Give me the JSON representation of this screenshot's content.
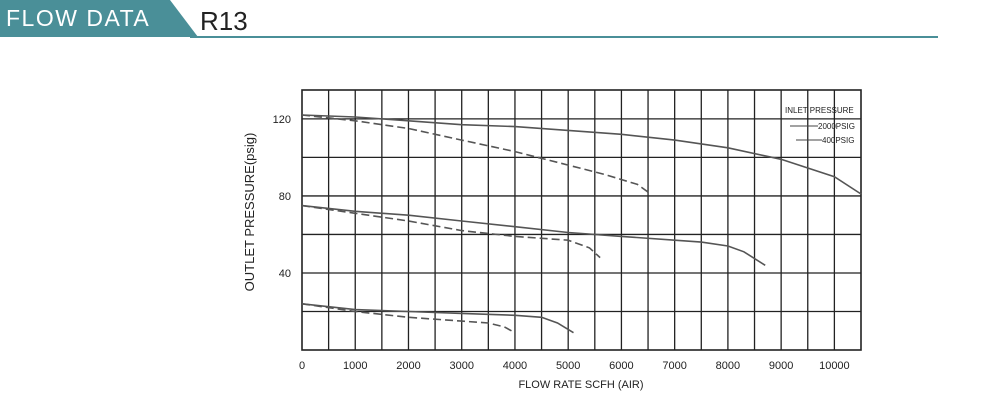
{
  "header": {
    "section_label": "FLOW DATA",
    "model": "R13",
    "accent_color": "#4a8f98"
  },
  "chart_data": {
    "type": "line",
    "xlabel": "FLOW RATE SCFH (AIR)",
    "ylabel": "OUTLET PRESSURE(psig)",
    "xlim": [
      0,
      10500
    ],
    "ylim": [
      0,
      135
    ],
    "x_ticks": [
      "0",
      "1000",
      "2000",
      "3000",
      "4000",
      "5000",
      "6000",
      "7000",
      "8000",
      "9000",
      "10000"
    ],
    "y_ticks": [
      "40",
      "80",
      "120"
    ],
    "grid": true,
    "legend": {
      "title": "INLET PRESSURE",
      "placement": "top-right",
      "entries": [
        {
          "label": "2000PSIG",
          "style": "solid"
        },
        {
          "label": "400PSIG",
          "style": "dashed"
        }
      ]
    },
    "series": [
      {
        "legend": "2000PSIG",
        "style": "solid",
        "points": [
          [
            0,
            122
          ],
          [
            1000,
            121
          ],
          [
            2000,
            119
          ],
          [
            3000,
            117
          ],
          [
            4000,
            116
          ],
          [
            5000,
            114
          ],
          [
            6000,
            112
          ],
          [
            7000,
            109
          ],
          [
            8000,
            105
          ],
          [
            9000,
            99
          ],
          [
            10000,
            90
          ],
          [
            10500,
            81
          ]
        ]
      },
      {
        "legend": "400PSIG",
        "style": "dashed",
        "points": [
          [
            0,
            122
          ],
          [
            1000,
            119
          ],
          [
            2000,
            115
          ],
          [
            3000,
            109
          ],
          [
            4000,
            103
          ],
          [
            5000,
            96
          ],
          [
            5700,
            91
          ],
          [
            6300,
            86
          ],
          [
            6550,
            81
          ]
        ]
      },
      {
        "legend": "2000PSIG",
        "style": "solid",
        "points": [
          [
            0,
            75
          ],
          [
            1000,
            72
          ],
          [
            2000,
            70
          ],
          [
            3000,
            67
          ],
          [
            4000,
            64
          ],
          [
            5000,
            61
          ],
          [
            6000,
            59
          ],
          [
            7000,
            57
          ],
          [
            7500,
            56
          ],
          [
            8000,
            54
          ],
          [
            8300,
            51
          ],
          [
            8700,
            44
          ]
        ]
      },
      {
        "legend": "400PSIG",
        "style": "dashed",
        "points": [
          [
            0,
            75
          ],
          [
            1000,
            71
          ],
          [
            2000,
            67
          ],
          [
            3000,
            62
          ],
          [
            4000,
            59
          ],
          [
            5000,
            57
          ],
          [
            5400,
            53
          ],
          [
            5600,
            48
          ]
        ]
      },
      {
        "legend": "2000PSIG",
        "style": "solid",
        "points": [
          [
            0,
            24
          ],
          [
            1000,
            21
          ],
          [
            2000,
            20
          ],
          [
            3000,
            19
          ],
          [
            4000,
            18
          ],
          [
            4500,
            17
          ],
          [
            4800,
            14
          ],
          [
            5100,
            9
          ]
        ]
      },
      {
        "legend": "400PSIG",
        "style": "dashed",
        "points": [
          [
            0,
            24
          ],
          [
            1000,
            20
          ],
          [
            2000,
            17
          ],
          [
            3000,
            15
          ],
          [
            3500,
            14
          ],
          [
            3800,
            12
          ],
          [
            4000,
            9
          ]
        ]
      }
    ]
  }
}
